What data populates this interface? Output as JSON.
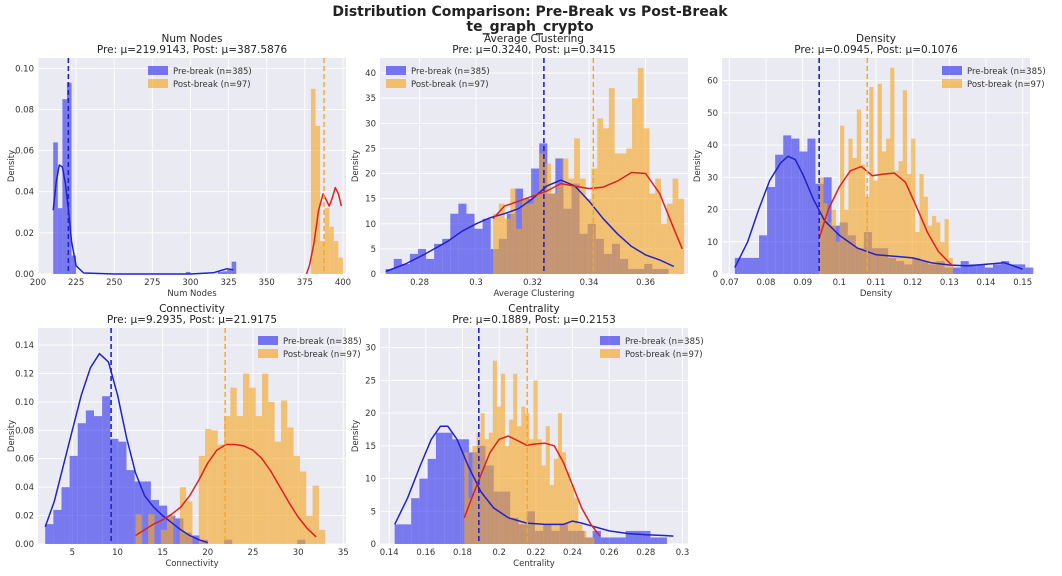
{
  "figure": {
    "title_line1": "Distribution Comparison: Pre-Break vs Post-Break",
    "title_line2": "te_graph_crypto"
  },
  "colors": {
    "pre": "#3333ee",
    "post": "#f5a623",
    "pre_kde": "#2222cc",
    "post_kde": "#e02020",
    "panel_bg": "#eaeaf2"
  },
  "legend": {
    "pre": "Pre-break (n=385)",
    "post": "Post-break (n=97)"
  },
  "chart_data": [
    {
      "type": "histogram",
      "title": "Num Nodes",
      "subtitle": "Pre: μ=219.9143, Post: μ=387.5876",
      "xlabel": "Num Nodes",
      "ylabel": "Density",
      "xlim": [
        200,
        402
      ],
      "ylim": [
        0,
        0.105
      ],
      "xticks": [
        200,
        225,
        250,
        275,
        300,
        325,
        350,
        375,
        400
      ],
      "yticks": [
        0.0,
        0.02,
        0.04,
        0.06,
        0.08,
        0.1
      ],
      "ytick_labels": [
        "0.00",
        "0.02",
        "0.04",
        "0.06",
        "0.08",
        "0.10"
      ],
      "legend_position": "top-center",
      "pre_mean": 219.9143,
      "post_mean": 387.5876,
      "pre_hist": {
        "start": 210,
        "width": 3,
        "values": [
          0.064,
          0.032,
          0.085,
          0.093,
          0.009
        ]
      },
      "pre_hist_extra": [
        [
          297,
          0.001
        ],
        [
          318,
          0.001
        ],
        [
          321,
          0.0013
        ],
        [
          324,
          0.002
        ],
        [
          327,
          0.006
        ]
      ],
      "post_hist": {
        "start": 376,
        "width": 3,
        "values": [
          0.0,
          0.09,
          0.072,
          0.016,
          0.032,
          0.023,
          0.016,
          0.008
        ]
      },
      "pre_kde": [
        [
          210,
          0.031
        ],
        [
          212,
          0.045
        ],
        [
          214,
          0.053
        ],
        [
          216,
          0.052
        ],
        [
          218,
          0.044
        ],
        [
          220,
          0.031
        ],
        [
          222,
          0.016
        ],
        [
          225,
          0.004
        ],
        [
          230,
          0.0005
        ],
        [
          250,
          0.0
        ],
        [
          300,
          0.0
        ],
        [
          315,
          0.0006
        ],
        [
          320,
          0.0017
        ],
        [
          324,
          0.0026
        ],
        [
          328,
          0.002
        ]
      ],
      "post_kde": [
        [
          376,
          0.0
        ],
        [
          378,
          0.004
        ],
        [
          381,
          0.015
        ],
        [
          384,
          0.031
        ],
        [
          387,
          0.039
        ],
        [
          389,
          0.036
        ],
        [
          391,
          0.033
        ],
        [
          393,
          0.037
        ],
        [
          395,
          0.042
        ],
        [
          397,
          0.039
        ],
        [
          399,
          0.033
        ]
      ]
    },
    {
      "type": "histogram",
      "title": "Average Clustering",
      "subtitle": "Pre: μ=0.3240, Post: μ=0.3415",
      "xlabel": "Average Clustering",
      "ylabel": "Density",
      "xlim": [
        0.266,
        0.375
      ],
      "ylim": [
        0,
        43
      ],
      "xticks": [
        0.28,
        0.3,
        0.32,
        0.34,
        0.36
      ],
      "yticks": [
        0,
        5,
        10,
        15,
        20,
        25,
        30,
        35,
        40
      ],
      "ytick_labels": [
        "0",
        "5",
        "10",
        "15",
        "20",
        "25",
        "30",
        "35",
        "40"
      ],
      "legend_position": "top-left",
      "pre_mean": 0.324,
      "post_mean": 0.3415,
      "pre_hist": {
        "start": 0.268,
        "width": 0.00286,
        "values": [
          1,
          3,
          2,
          4,
          5,
          3,
          6,
          7,
          12,
          14,
          12,
          9,
          11,
          5,
          7,
          12,
          17,
          15,
          21,
          26,
          16,
          23,
          13,
          18,
          8,
          10,
          7,
          4,
          6,
          3,
          1,
          1,
          2,
          1,
          1
        ]
      },
      "post_hist": {
        "start": 0.306,
        "width": 0.00205,
        "values": [
          12,
          14,
          11,
          17,
          9,
          15,
          14,
          16,
          24,
          22,
          16,
          18,
          23,
          19,
          27,
          19,
          15,
          21,
          31,
          29,
          37,
          24,
          24,
          25,
          35,
          41,
          29,
          16,
          19,
          10,
          14,
          19,
          15
        ]
      },
      "pre_kde": [
        [
          0.268,
          0.5
        ],
        [
          0.275,
          2
        ],
        [
          0.282,
          4
        ],
        [
          0.29,
          6.5
        ],
        [
          0.295,
          8.5
        ],
        [
          0.3,
          10
        ],
        [
          0.305,
          11.2
        ],
        [
          0.31,
          12
        ],
        [
          0.315,
          13
        ],
        [
          0.32,
          15
        ],
        [
          0.325,
          17.5
        ],
        [
          0.33,
          18.7
        ],
        [
          0.335,
          17.5
        ],
        [
          0.34,
          14.5
        ],
        [
          0.345,
          11
        ],
        [
          0.35,
          8
        ],
        [
          0.355,
          5.5
        ],
        [
          0.36,
          3.8
        ],
        [
          0.365,
          2.8
        ],
        [
          0.37,
          1.5
        ]
      ],
      "post_kde": [
        [
          0.306,
          11
        ],
        [
          0.31,
          13.5
        ],
        [
          0.315,
          14.5
        ],
        [
          0.32,
          15.5
        ],
        [
          0.325,
          16.5
        ],
        [
          0.33,
          18
        ],
        [
          0.335,
          17.5
        ],
        [
          0.34,
          17
        ],
        [
          0.345,
          17.3
        ],
        [
          0.35,
          18.5
        ],
        [
          0.355,
          20.2
        ],
        [
          0.36,
          20
        ],
        [
          0.365,
          16
        ],
        [
          0.37,
          9
        ],
        [
          0.373,
          5
        ]
      ]
    },
    {
      "type": "histogram",
      "title": "Density",
      "subtitle": "Pre: μ=0.0945, Post: μ=0.1076",
      "xlabel": "Density",
      "ylabel": "Density",
      "xlim": [
        0.068,
        0.152
      ],
      "ylim": [
        0,
        67
      ],
      "xticks": [
        0.07,
        0.08,
        0.09,
        0.1,
        0.11,
        0.12,
        0.13,
        0.14,
        0.15
      ],
      "yticks": [
        0,
        10,
        20,
        30,
        40,
        50,
        60
      ],
      "ytick_labels": [
        "0",
        "10",
        "20",
        "30",
        "40",
        "50",
        "60"
      ],
      "legend_position": "top-right",
      "pre_mean": 0.0945,
      "post_mean": 0.1076,
      "pre_hist": {
        "start": 0.0715,
        "width": 0.0022,
        "values": [
          5,
          5,
          5,
          12,
          27,
          37,
          43,
          42,
          38,
          42,
          28,
          30,
          15,
          16,
          12,
          8,
          13,
          8,
          8,
          5,
          4,
          3,
          5,
          4,
          3,
          4,
          2,
          2,
          4,
          3,
          3,
          2,
          3,
          4,
          3,
          3,
          2
        ]
      },
      "post_hist": {
        "start": 0.0945,
        "width": 0.00114,
        "values": [
          30,
          22,
          16,
          20,
          10,
          46,
          20,
          42,
          36,
          51,
          34,
          24,
          58,
          29,
          59,
          38,
          42,
          64,
          32,
          35,
          57,
          31,
          42,
          13,
          31,
          24,
          15,
          18,
          16,
          10,
          17,
          5
        ]
      },
      "pre_kde": [
        [
          0.0715,
          2
        ],
        [
          0.075,
          10
        ],
        [
          0.078,
          20
        ],
        [
          0.081,
          29
        ],
        [
          0.084,
          34.5
        ],
        [
          0.086,
          36.5
        ],
        [
          0.088,
          35.5
        ],
        [
          0.09,
          31
        ],
        [
          0.093,
          23
        ],
        [
          0.096,
          16.5
        ],
        [
          0.1,
          12
        ],
        [
          0.105,
          8
        ],
        [
          0.11,
          6
        ],
        [
          0.115,
          5.5
        ],
        [
          0.12,
          5
        ],
        [
          0.125,
          3.5
        ],
        [
          0.13,
          2.8
        ],
        [
          0.135,
          2.5
        ],
        [
          0.14,
          3
        ],
        [
          0.145,
          3.5
        ],
        [
          0.15,
          1.5
        ]
      ],
      "post_kde": [
        [
          0.0945,
          11
        ],
        [
          0.097,
          20
        ],
        [
          0.1,
          27
        ],
        [
          0.103,
          32
        ],
        [
          0.106,
          33.3
        ],
        [
          0.109,
          30.5
        ],
        [
          0.112,
          31
        ],
        [
          0.115,
          31.3
        ],
        [
          0.118,
          28.5
        ],
        [
          0.121,
          21
        ],
        [
          0.124,
          13
        ],
        [
          0.127,
          7
        ],
        [
          0.13,
          3.5
        ],
        [
          0.131,
          2.5
        ]
      ]
    },
    {
      "type": "histogram",
      "title": "Connectivity",
      "subtitle": "Pre: μ=9.2935, Post: μ=21.9175",
      "xlabel": "Connectivity",
      "ylabel": "Density",
      "xlim": [
        1.2,
        35.3
      ],
      "ylim": [
        0,
        0.152
      ],
      "xticks": [
        5,
        10,
        15,
        20,
        25,
        30,
        35
      ],
      "yticks": [
        0.0,
        0.02,
        0.04,
        0.06,
        0.08,
        0.1,
        0.12,
        0.14
      ],
      "ytick_labels": [
        "0.00",
        "0.02",
        "0.04",
        "0.06",
        "0.08",
        "0.10",
        "0.12",
        "0.14"
      ],
      "legend_position": "top-right",
      "pre_mean": 9.2935,
      "post_mean": 21.9175,
      "pre_hist": {
        "start": 2.0,
        "width": 0.9,
        "values": [
          0.014,
          0.024,
          0.04,
          0.062,
          0.085,
          0.094,
          0.09,
          0.104,
          0.074,
          0.072,
          0.052,
          0.044,
          0.044,
          0.031,
          0.027,
          0.02,
          0.018,
          0.008,
          0.006,
          0.003,
          0.0,
          0.0,
          0.003,
          0.0,
          0.0,
          0.0,
          0.0,
          0.0,
          0.0,
          0.0,
          0.0,
          0.003
        ]
      },
      "post_hist": {
        "start": 12.0,
        "width": 0.7,
        "values": [
          0.021,
          0.0,
          0.021,
          0.0,
          0.01,
          0.02,
          0.0,
          0.04,
          0.03,
          0.0,
          0.062,
          0.081,
          0.08,
          0.07,
          0.09,
          0.11,
          0.09,
          0.12,
          0.11,
          0.09,
          0.12,
          0.1,
          0.072,
          0.101,
          0.082,
          0.062,
          0.051,
          0.02,
          0.041,
          0.01
        ]
      },
      "pre_kde": [
        [
          2,
          0.012
        ],
        [
          3,
          0.03
        ],
        [
          4,
          0.055
        ],
        [
          5,
          0.08
        ],
        [
          6,
          0.105
        ],
        [
          7,
          0.124
        ],
        [
          8,
          0.134
        ],
        [
          9,
          0.128
        ],
        [
          10,
          0.105
        ],
        [
          11,
          0.075
        ],
        [
          12,
          0.05
        ],
        [
          13,
          0.034
        ],
        [
          14,
          0.026
        ],
        [
          15,
          0.02
        ],
        [
          16,
          0.015
        ],
        [
          17,
          0.01
        ],
        [
          18,
          0.006
        ],
        [
          19,
          0.003
        ],
        [
          20,
          0.001
        ]
      ],
      "post_kde": [
        [
          12,
          0.006
        ],
        [
          13,
          0.01
        ],
        [
          14,
          0.014
        ],
        [
          15,
          0.017
        ],
        [
          16,
          0.021
        ],
        [
          17,
          0.026
        ],
        [
          18,
          0.034
        ],
        [
          19,
          0.045
        ],
        [
          20,
          0.057
        ],
        [
          21,
          0.066
        ],
        [
          22,
          0.07
        ],
        [
          23,
          0.07
        ],
        [
          24,
          0.069
        ],
        [
          25,
          0.066
        ],
        [
          26,
          0.06
        ],
        [
          27,
          0.051
        ],
        [
          28,
          0.04
        ],
        [
          29,
          0.029
        ],
        [
          30,
          0.019
        ],
        [
          31,
          0.011
        ],
        [
          32,
          0.005
        ]
      ]
    },
    {
      "type": "histogram",
      "title": "Centrality",
      "subtitle": "Pre: μ=0.1889, Post: μ=0.2153",
      "xlabel": "Centrality",
      "ylabel": "Density",
      "xlim": [
        0.135,
        0.303
      ],
      "ylim": [
        0,
        33
      ],
      "xticks": [
        0.14,
        0.16,
        0.18,
        0.2,
        0.22,
        0.24,
        0.26,
        0.28,
        0.3
      ],
      "yticks": [
        0,
        5,
        10,
        15,
        20,
        25,
        30
      ],
      "ytick_labels": [
        "0",
        "5",
        "10",
        "15",
        "20",
        "25",
        "30"
      ],
      "legend_position": "top-right",
      "pre_mean": 0.1889,
      "post_mean": 0.2153,
      "pre_hist": {
        "start": 0.143,
        "width": 0.0045,
        "values": [
          3,
          3,
          7,
          10,
          13,
          17,
          17,
          16,
          16,
          14,
          15,
          12,
          8,
          8,
          4,
          3,
          5,
          2,
          3,
          2,
          3,
          2,
          2,
          1,
          2,
          1,
          1,
          1,
          2,
          2,
          2,
          1,
          1,
          0
        ]
      },
      "post_hist": {
        "start": 0.181,
        "width": 0.00222,
        "values": [
          14,
          7,
          15,
          17,
          20,
          16,
          17,
          28,
          21,
          26,
          15,
          19,
          26,
          18,
          21,
          20,
          16,
          25,
          16,
          12,
          18,
          9,
          13,
          20,
          14,
          11,
          9,
          7,
          3,
          2,
          1,
          1
        ]
      },
      "pre_kde": [
        [
          0.143,
          3
        ],
        [
          0.15,
          7
        ],
        [
          0.157,
          12
        ],
        [
          0.163,
          16
        ],
        [
          0.168,
          18
        ],
        [
          0.172,
          18
        ],
        [
          0.177,
          16
        ],
        [
          0.183,
          12
        ],
        [
          0.19,
          8
        ],
        [
          0.197,
          5.5
        ],
        [
          0.205,
          4
        ],
        [
          0.215,
          3.2
        ],
        [
          0.225,
          3
        ],
        [
          0.235,
          3
        ],
        [
          0.24,
          3.5
        ],
        [
          0.245,
          3.2
        ],
        [
          0.25,
          2.8
        ],
        [
          0.26,
          2
        ],
        [
          0.27,
          1.6
        ],
        [
          0.28,
          1.4
        ],
        [
          0.29,
          1.3
        ],
        [
          0.295,
          1.2
        ]
      ],
      "post_kde": [
        [
          0.181,
          4
        ],
        [
          0.185,
          7
        ],
        [
          0.19,
          10.5
        ],
        [
          0.195,
          14
        ],
        [
          0.2,
          16
        ],
        [
          0.205,
          16.5
        ],
        [
          0.21,
          15.8
        ],
        [
          0.215,
          15.1
        ],
        [
          0.22,
          15.3
        ],
        [
          0.225,
          15.4
        ],
        [
          0.23,
          15
        ],
        [
          0.235,
          12.5
        ],
        [
          0.24,
          9
        ],
        [
          0.245,
          5.5
        ],
        [
          0.25,
          3
        ],
        [
          0.255,
          1.2
        ]
      ]
    }
  ]
}
